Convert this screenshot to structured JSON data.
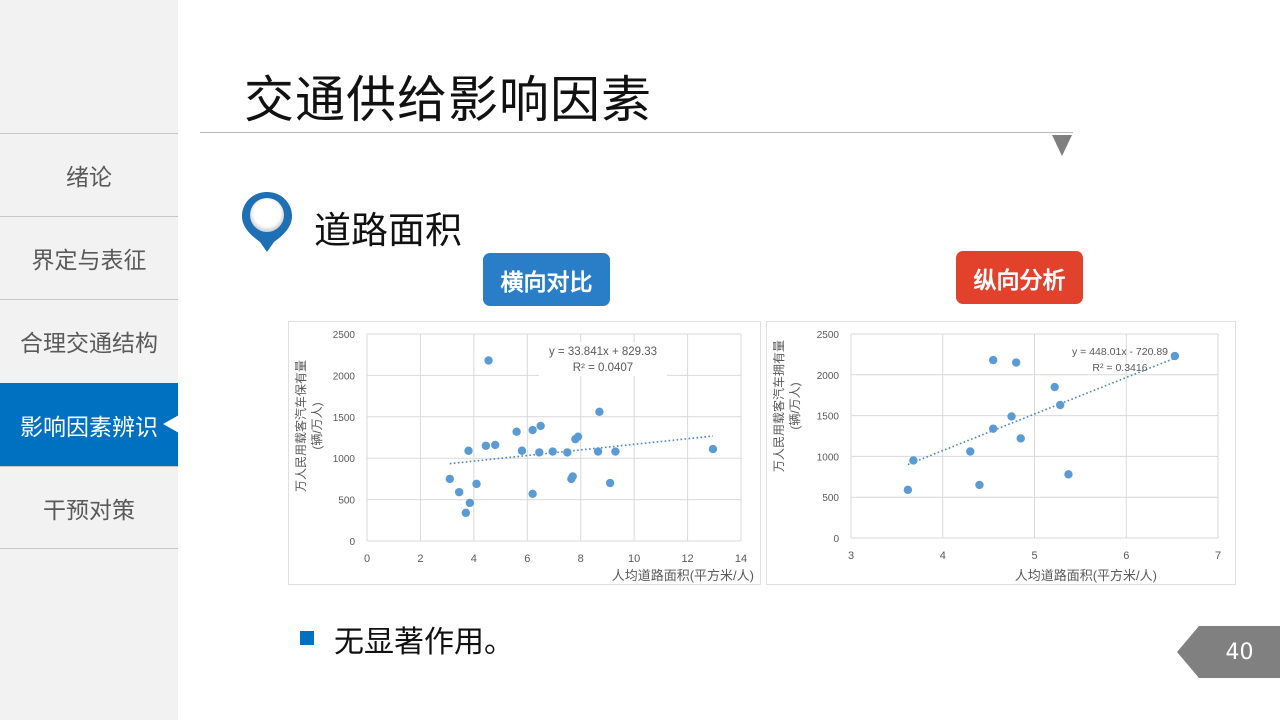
{
  "sidebar": {
    "items": [
      {
        "label": "绪论",
        "active": false
      },
      {
        "label": "界定与表征",
        "active": false
      },
      {
        "label": "合理交通结构",
        "active": false
      },
      {
        "label": "影响因素辨识",
        "active": true
      },
      {
        "label": "干预对策",
        "active": false
      }
    ]
  },
  "slide": {
    "title": "交通供给影响因素",
    "subtitle": "道路面积",
    "subtitle_icon": "map-pin-icon",
    "tag_horizontal": "横向对比",
    "tag_vertical": "纵向分析",
    "bullet_text": "无显著作用。",
    "page_number": "40"
  },
  "colors": {
    "accent_blue": "#0070c0",
    "tag_blue": "#2a7ec8",
    "tag_red": "#e2412b",
    "point_color": "#5b9bd5",
    "sidebar_bg": "#f2f2f2",
    "badge_gray": "#808080"
  },
  "chart_data": [
    {
      "type": "scatter",
      "title": "横向对比",
      "xlabel": "人均道路面积(平方米/人)",
      "ylabel": "万人民用载客汽车保有量(辆/万人)",
      "xlim": [
        0,
        14
      ],
      "ylim": [
        0,
        2500
      ],
      "xticks": [
        0,
        2,
        4,
        6,
        8,
        10,
        12,
        14
      ],
      "yticks": [
        0,
        500,
        1000,
        1500,
        2000,
        2500
      ],
      "grid": true,
      "trendline": {
        "equation": "y = 33.841x + 829.33",
        "r2_label": "R² = 0.0407",
        "slope": 33.841,
        "intercept": 829.33,
        "x_range": [
          3.1,
          12.95
        ],
        "style": "dotted"
      },
      "points": [
        [
          3.1,
          750
        ],
        [
          3.45,
          590
        ],
        [
          3.7,
          340
        ],
        [
          3.85,
          460
        ],
        [
          3.8,
          1090
        ],
        [
          4.1,
          690
        ],
        [
          4.45,
          1150
        ],
        [
          4.55,
          2180
        ],
        [
          4.8,
          1160
        ],
        [
          5.6,
          1320
        ],
        [
          5.8,
          1090
        ],
        [
          6.2,
          1340
        ],
        [
          6.2,
          570
        ],
        [
          6.45,
          1070
        ],
        [
          6.5,
          1390
        ],
        [
          6.95,
          1080
        ],
        [
          7.5,
          1070
        ],
        [
          7.65,
          750
        ],
        [
          7.7,
          780
        ],
        [
          7.8,
          1230
        ],
        [
          7.9,
          1260
        ],
        [
          8.7,
          1560
        ],
        [
          8.65,
          1080
        ],
        [
          9.1,
          700
        ],
        [
          9.3,
          1080
        ],
        [
          12.95,
          1110
        ]
      ]
    },
    {
      "type": "scatter",
      "title": "纵向分析",
      "xlabel": "人均道路面积(平方米/人)",
      "ylabel": "万人民用载客汽车拥有量(辆/万人)",
      "xlim": [
        3,
        7
      ],
      "ylim": [
        0,
        2500
      ],
      "xticks": [
        3,
        4,
        5,
        6,
        7
      ],
      "yticks": [
        0,
        500,
        1000,
        1500,
        2000,
        2500
      ],
      "grid": true,
      "trendline": {
        "equation": "y = 448.01x - 720.89",
        "r2_label": "R² = 0.3416",
        "slope": 448.01,
        "intercept": -720.89,
        "x_range": [
          3.62,
          6.53
        ],
        "style": "dotted"
      },
      "points": [
        [
          3.62,
          590
        ],
        [
          3.68,
          950
        ],
        [
          4.3,
          1060
        ],
        [
          4.4,
          650
        ],
        [
          4.55,
          2180
        ],
        [
          4.55,
          1340
        ],
        [
          4.75,
          1490
        ],
        [
          4.8,
          2150
        ],
        [
          4.85,
          1220
        ],
        [
          5.22,
          1850
        ],
        [
          5.28,
          1630
        ],
        [
          5.37,
          780
        ],
        [
          6.53,
          2230
        ]
      ]
    }
  ]
}
